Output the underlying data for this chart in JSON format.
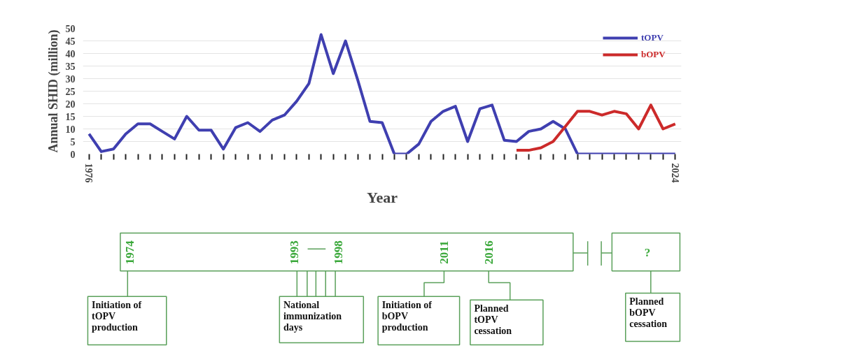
{
  "chart_data": {
    "type": "line",
    "xlabel": "Year",
    "ylabel": "Annual SHID (million)",
    "x": [
      1976,
      1977,
      1978,
      1979,
      1980,
      1981,
      1982,
      1983,
      1984,
      1985,
      1986,
      1987,
      1988,
      1989,
      1990,
      1991,
      1992,
      1993,
      1994,
      1995,
      1996,
      1997,
      1998,
      1999,
      2000,
      2001,
      2002,
      2003,
      2004,
      2005,
      2006,
      2007,
      2008,
      2009,
      2010,
      2011,
      2012,
      2013,
      2014,
      2015,
      2016,
      2017,
      2018,
      2019,
      2020,
      2021,
      2022,
      2023,
      2024
    ],
    "series": [
      {
        "name": "tOPV",
        "color": "#3f3fb0",
        "values": [
          8,
          1,
          2,
          8,
          12,
          12,
          9,
          6,
          15,
          9.5,
          9.5,
          2,
          10.5,
          12.5,
          9,
          13.5,
          15.5,
          21,
          28,
          47.5,
          32,
          45,
          29.5,
          13,
          12.5,
          0,
          0,
          4,
          13,
          17,
          19,
          5,
          18,
          19.5,
          5.5,
          5,
          9,
          10,
          13,
          10,
          0,
          0,
          0,
          0,
          0,
          0,
          0,
          0,
          0
        ]
      },
      {
        "name": "bOPV",
        "color": "#cc2a2a",
        "x": [
          2011,
          2012,
          2013,
          2014,
          2015,
          2016,
          2017,
          2018,
          2019,
          2020,
          2021,
          2022,
          2023,
          2024
        ],
        "values": [
          1.5,
          1.5,
          2.5,
          5,
          11,
          17,
          17,
          15.5,
          17,
          16,
          10,
          19.5,
          10,
          12
        ]
      }
    ],
    "xlim": [
      1975.5,
      2024.5
    ],
    "xticks": [
      1976,
      {
        "value": 1977,
        "label": null
      },
      {
        "value": 1978,
        "label": null
      },
      {
        "value": 1979,
        "label": null
      },
      {
        "value": 1980,
        "label": null
      },
      {
        "value": 1981,
        "label": null
      },
      {
        "value": 1982,
        "label": null
      },
      {
        "value": 1983,
        "label": null
      },
      {
        "value": 1984,
        "label": null
      },
      {
        "value": 1985,
        "label": null
      },
      {
        "value": 1986,
        "label": null
      },
      {
        "value": 1987,
        "label": null
      },
      {
        "value": 1988,
        "label": null
      },
      {
        "value": 1989,
        "label": null
      },
      {
        "value": 1990,
        "label": null
      },
      {
        "value": 1991,
        "label": null
      },
      {
        "value": 1992,
        "label": null
      },
      {
        "value": 1993,
        "label": null
      },
      {
        "value": 1994,
        "label": null
      },
      {
        "value": 1995,
        "label": null
      },
      {
        "value": 1996,
        "label": null
      },
      {
        "value": 1997,
        "label": null
      },
      {
        "value": 1998,
        "label": null
      },
      {
        "value": 1999,
        "label": null
      },
      {
        "value": 2000,
        "label": null
      },
      {
        "value": 2001,
        "label": null
      },
      {
        "value": 2002,
        "label": null
      },
      {
        "value": 2003,
        "label": null
      },
      {
        "value": 2004,
        "label": null
      },
      {
        "value": 2005,
        "label": null
      },
      {
        "value": 2006,
        "label": null
      },
      {
        "value": 2007,
        "label": null
      },
      {
        "value": 2008,
        "label": null
      },
      {
        "value": 2009,
        "label": null
      },
      {
        "value": 2010,
        "label": null
      },
      {
        "value": 2011,
        "label": null
      },
      {
        "value": 2012,
        "label": null
      },
      {
        "value": 2013,
        "label": null
      },
      {
        "value": 2014,
        "label": null
      },
      {
        "value": 2015,
        "label": null
      },
      {
        "value": 2016,
        "label": null
      },
      {
        "value": 2017,
        "label": null
      },
      {
        "value": 2018,
        "label": null
      },
      {
        "value": 2019,
        "label": null
      },
      {
        "value": 2020,
        "label": null
      },
      {
        "value": 2021,
        "label": null
      },
      {
        "value": 2022,
        "label": null
      },
      {
        "value": 2023,
        "label": null
      },
      2024
    ],
    "ylim": [
      0,
      50
    ],
    "yticks": [
      0,
      5,
      10,
      15,
      20,
      25,
      30,
      35,
      40,
      45,
      50
    ],
    "grid": "y",
    "legend": "top right",
    "line_style": "solid",
    "marker": "none",
    "annotations": [
      "1974",
      "1993",
      "1998",
      "2011",
      "2016",
      "?",
      "Initiation of\ntOPV\nproduction",
      "National\nimmunization\ndays",
      "Initiation of\nbOPV\nproduction",
      "Planned\ntOPV\ncessation",
      "Planned\nbOPV\ncessation"
    ]
  }
}
